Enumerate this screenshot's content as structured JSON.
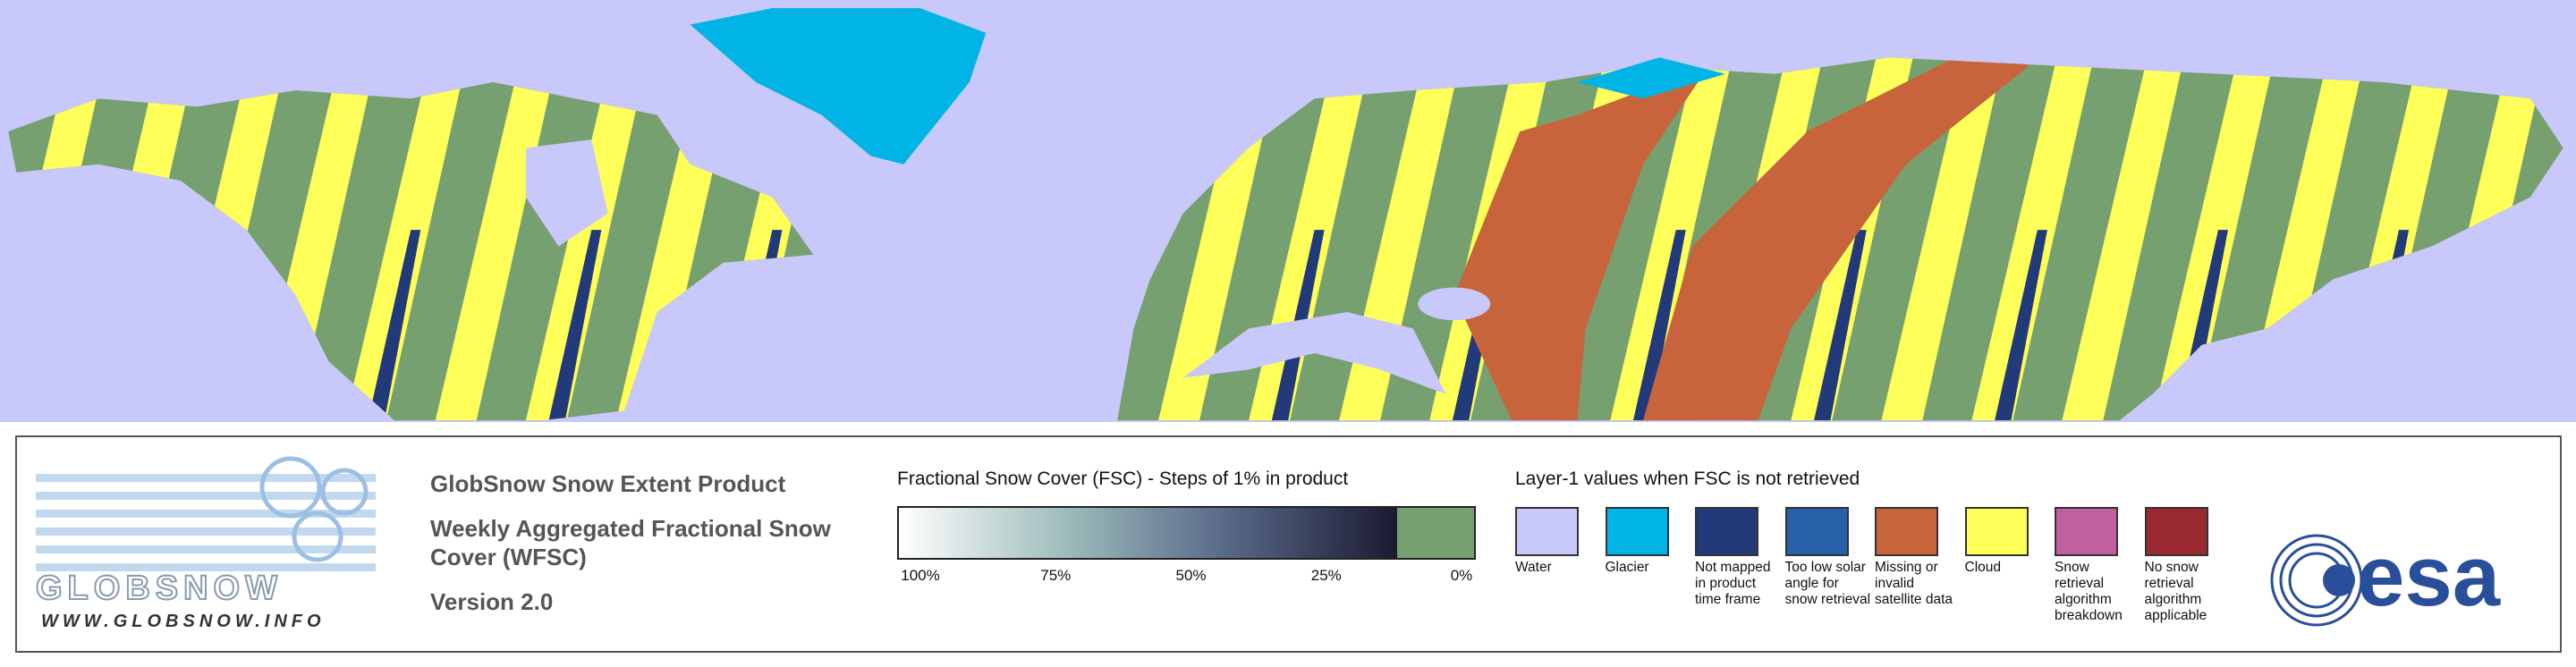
{
  "logo": {
    "name": "GLOBSNOW",
    "url": "WWW.GLOBSNOW.INFO"
  },
  "product": {
    "title": "GlobSnow Snow Extent Product",
    "subtitle": [
      "Weekly Aggregated Fractional Snow",
      "Cover (WFSC)"
    ],
    "version": "Version 2.0"
  },
  "colorbar": {
    "title": "Fractional Snow Cover (FSC) - Steps of 1% in product",
    "ticks": [
      "100%",
      "75%",
      "50%",
      "25%",
      "0%"
    ]
  },
  "layer1": {
    "title": "Layer-1 values when FSC is not retrieved",
    "classes": [
      {
        "label": "Water",
        "color": "#c8c8fa"
      },
      {
        "label": "Glacier",
        "color": "#00b4e6"
      },
      {
        "label": "Not mapped in product time frame",
        "color": "#233a7a"
      },
      {
        "label": "Too low solar angle for snow retrieval",
        "color": "#2860a8"
      },
      {
        "label": "Missing or invalid satellite data",
        "color": "#c8643c"
      },
      {
        "label": "Cloud",
        "color": "#ffff5a"
      },
      {
        "label": "Snow retrieval algorithm breakdown",
        "color": "#c060a0"
      },
      {
        "label": "No snow retrieval algorithm applicable",
        "color": "#9a2a30"
      }
    ]
  },
  "esa_logo": "esa"
}
